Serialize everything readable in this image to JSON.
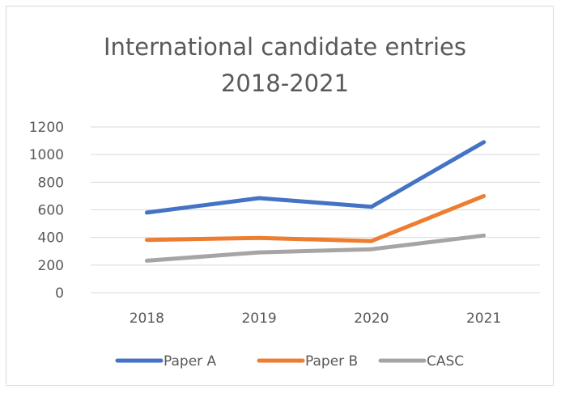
{
  "chart_data": {
    "type": "line",
    "title_lines": [
      "International candidate entries",
      "2018-2021"
    ],
    "categories": [
      "2018",
      "2019",
      "2020",
      "2021"
    ],
    "ylim": [
      0,
      1200
    ],
    "yticks": [
      0,
      200,
      400,
      600,
      800,
      1000,
      1200
    ],
    "grid": true,
    "legend_position": "bottom",
    "series": [
      {
        "name": "Paper A",
        "color": "#4472c4",
        "values": [
          580,
          685,
          622,
          1090
        ]
      },
      {
        "name": "Paper B",
        "color": "#ed7d31",
        "values": [
          382,
          397,
          374,
          700
        ]
      },
      {
        "name": "CASC",
        "color": "#a5a5a5",
        "values": [
          232,
          292,
          315,
          414
        ]
      }
    ]
  }
}
